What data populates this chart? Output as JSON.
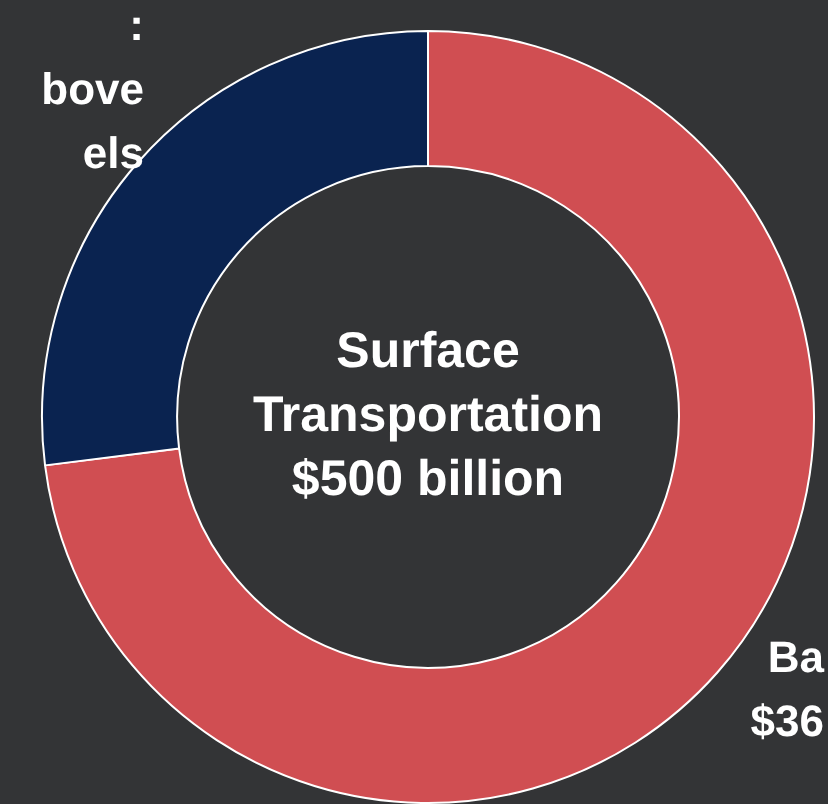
{
  "chart_data": {
    "type": "donut",
    "title": "Surface Transportation $500 billion",
    "categories": [
      null,
      null
    ],
    "values": [
      73,
      27
    ],
    "colors": [
      "#d04e52",
      "#0a2350"
    ],
    "annotations": [
      ":",
      "bove",
      "els",
      "Ba",
      "$36"
    ]
  }
}
